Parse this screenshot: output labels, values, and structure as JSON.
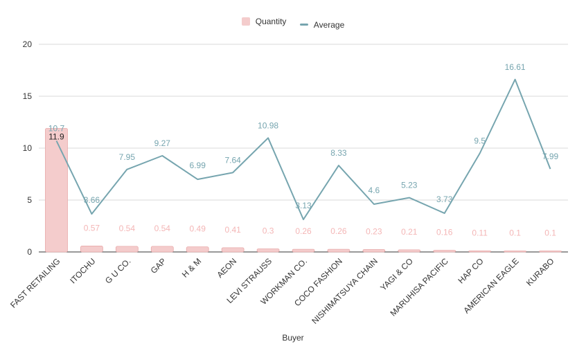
{
  "chart_data": {
    "type": "bar",
    "xlabel": "Buyer",
    "ylabel": "",
    "ylim": [
      0,
      20
    ],
    "yticks": [
      "0",
      "5",
      "10",
      "15",
      "20"
    ],
    "grid": true,
    "legend_position": "top",
    "categories": [
      "FAST RETAILING",
      "ITOCHU",
      "G U CO.",
      "GAP",
      "H & M",
      "AEON",
      "LEVI STRAUSS",
      "WORKMAN CO.",
      "COCO FASHION",
      "NISHIMATSUYA CHAIN",
      "YAGI & CO",
      "MARUHISA PACIFIC",
      "HAP CO",
      "AMERICAN EAGLE",
      "KURABO"
    ],
    "series": [
      {
        "name": "Quantity",
        "type": "bar",
        "color": "#f4cccc",
        "values": [
          11.9,
          0.57,
          0.54,
          0.54,
          0.49,
          0.41,
          0.3,
          0.26,
          0.26,
          0.23,
          0.21,
          0.16,
          0.11,
          0.1,
          0.1
        ],
        "labels": [
          "11.9",
          "0.57",
          "0.54",
          "0.54",
          "0.49",
          "0.41",
          "0.3",
          "0.26",
          "0.26",
          "0.23",
          "0.21",
          "0.16",
          "0.11",
          "0.1",
          "0.1"
        ]
      },
      {
        "name": "Average",
        "type": "line",
        "color": "#76a5af",
        "values": [
          10.7,
          3.66,
          7.95,
          9.27,
          6.99,
          7.64,
          10.98,
          3.13,
          8.33,
          4.6,
          5.23,
          3.73,
          9.5,
          16.61,
          7.99
        ],
        "labels": [
          "10.7",
          "3.66",
          "7.95",
          "9.27",
          "6.99",
          "7.64",
          "10.98",
          "3.13",
          "8.33",
          "4.6",
          "5.23",
          "3.73",
          "9.5",
          "16.61",
          "7.99"
        ]
      }
    ]
  }
}
